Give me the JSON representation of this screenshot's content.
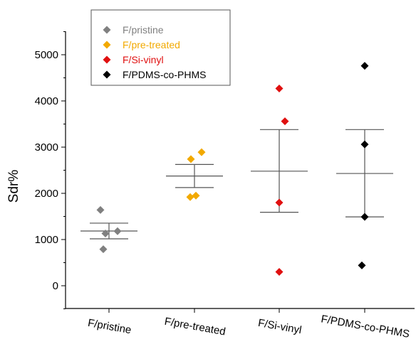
{
  "chart_data": {
    "type": "scatter",
    "title": "",
    "xlabel": "",
    "ylabel": "Sdr%",
    "ylim": [
      -500,
      5500
    ],
    "yticks": [
      0,
      1000,
      2000,
      3000,
      4000,
      5000
    ],
    "categories": [
      "F/pristine",
      "F/pre-treated",
      "F/Si-vinyl",
      "F/PDMS-co-PHMS"
    ],
    "legend_placement": "top-left",
    "grid": false,
    "series": [
      {
        "name": "F/pristine",
        "color": "#808080",
        "points": [
          {
            "offset": -0.12,
            "value": 1640
          },
          {
            "offset": -0.05,
            "value": 1130
          },
          {
            "offset": 0.12,
            "value": 1180
          },
          {
            "offset": -0.08,
            "value": 790
          }
        ],
        "mean": 1185,
        "upper": 1355,
        "lower": 1015
      },
      {
        "name": "F/pre-treated",
        "color": "#f2a900",
        "points": [
          {
            "offset": 0.1,
            "value": 2890
          },
          {
            "offset": -0.05,
            "value": 2740
          },
          {
            "offset": 0.02,
            "value": 1950
          },
          {
            "offset": -0.06,
            "value": 1920
          }
        ],
        "mean": 2375,
        "upper": 2625,
        "lower": 2125
      },
      {
        "name": "F/Si-vinyl",
        "color": "#e01010",
        "points": [
          {
            "offset": 0.0,
            "value": 4270
          },
          {
            "offset": 0.08,
            "value": 3560
          },
          {
            "offset": 0.0,
            "value": 1800
          },
          {
            "offset": 0.0,
            "value": 300
          }
        ],
        "mean": 2480,
        "upper": 3380,
        "lower": 1590
      },
      {
        "name": "F/PDMS-co-PHMS",
        "color": "#000000",
        "points": [
          {
            "offset": 0.0,
            "value": 4760
          },
          {
            "offset": 0.0,
            "value": 3060
          },
          {
            "offset": 0.0,
            "value": 1490
          },
          {
            "offset": -0.04,
            "value": 440
          }
        ],
        "mean": 2430,
        "upper": 3380,
        "lower": 1490
      }
    ]
  }
}
